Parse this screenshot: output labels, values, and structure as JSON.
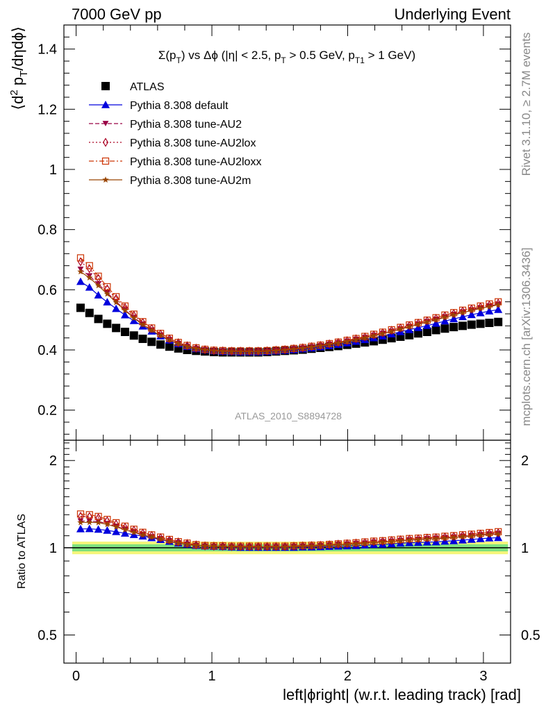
{
  "header": {
    "left": "7000 GeV pp",
    "right": "Underlying Event"
  },
  "side_labels": {
    "upper": "Rivet 3.1.10, ≥ 2.7M events",
    "lower": "mcplots.cern.ch [arXiv:1306.3436]"
  },
  "chart_data": [
    {
      "type": "scatter",
      "title": "Σ(p_T) vs Δϕ (|η| < 2.5, p_T > 0.5 GeV, p_T1 > 1 GeV)",
      "title_parts": {
        "sigma": "Σ(p",
        "sub_t": "T",
        "mid": ") vs Δϕ (|η| < 2.5, p",
        "sub_t2": "T",
        "mid2": " > 0.5 GeV, p",
        "sub_t1": "T1",
        "end": " > 1 GeV)"
      },
      "ylabel": "⟨d² p_T/dηdϕ⟩",
      "ylabel_parts": {
        "open": "⟨d",
        "sup": "2",
        "p": " p",
        "sub": "T",
        "rest": "/dηdϕ⟩"
      },
      "watermark": "ATLAS_2010_S8894728",
      "xlim": [
        -0.09,
        3.2
      ],
      "ylim": [
        0.1,
        1.48
      ],
      "yticks": [
        0.2,
        0.4,
        0.6,
        0.8,
        1,
        1.2,
        1.4
      ],
      "ytick_labels": [
        "0.2",
        "0.4",
        "0.6",
        "0.8",
        "1",
        "1.2",
        "1.4"
      ],
      "x": [
        0.0327,
        0.0982,
        0.1636,
        0.2291,
        0.2945,
        0.36,
        0.4254,
        0.4909,
        0.5563,
        0.6218,
        0.6872,
        0.7527,
        0.8181,
        0.8836,
        0.949,
        1.0145,
        1.0799,
        1.1454,
        1.2108,
        1.2763,
        1.3417,
        1.4072,
        1.4726,
        1.5381,
        1.6035,
        1.669,
        1.7344,
        1.7999,
        1.8653,
        1.9308,
        1.9962,
        2.0617,
        2.1271,
        2.1926,
        2.258,
        2.3235,
        2.3889,
        2.4544,
        2.5198,
        2.5853,
        2.6507,
        2.7162,
        2.7816,
        2.8471,
        2.9125,
        2.978,
        3.0434,
        3.1089
      ],
      "legend_position": "top-left",
      "series": [
        {
          "name": "ATLAS",
          "color": "#000000",
          "marker": "square-filled",
          "line": "none",
          "values": [
            0.54,
            0.523,
            0.503,
            0.487,
            0.473,
            0.46,
            0.448,
            0.437,
            0.427,
            0.418,
            0.411,
            0.405,
            0.4,
            0.397,
            0.395,
            0.393,
            0.392,
            0.392,
            0.392,
            0.392,
            0.392,
            0.393,
            0.395,
            0.397,
            0.399,
            0.401,
            0.404,
            0.407,
            0.41,
            0.413,
            0.417,
            0.421,
            0.425,
            0.429,
            0.434,
            0.439,
            0.444,
            0.449,
            0.455,
            0.46,
            0.466,
            0.471,
            0.476,
            0.48,
            0.484,
            0.487,
            0.49,
            0.493
          ]
        },
        {
          "name": "Pythia 8.308 default",
          "color": "#0000dd",
          "marker": "triangle-up-filled",
          "line": "solid",
          "values": [
            0.627,
            0.608,
            0.582,
            0.559,
            0.537,
            0.516,
            0.497,
            0.479,
            0.462,
            0.446,
            0.432,
            0.42,
            0.411,
            0.404,
            0.4,
            0.397,
            0.395,
            0.394,
            0.393,
            0.393,
            0.393,
            0.394,
            0.396,
            0.398,
            0.4,
            0.403,
            0.406,
            0.41,
            0.414,
            0.418,
            0.423,
            0.428,
            0.434,
            0.44,
            0.446,
            0.453,
            0.46,
            0.467,
            0.474,
            0.481,
            0.488,
            0.496,
            0.503,
            0.51,
            0.517,
            0.523,
            0.529,
            0.534
          ]
        },
        {
          "name": "Pythia 8.308 tune-AU2",
          "color": "#990044",
          "marker": "triangle-down-filled",
          "line": "dashed",
          "values": [
            0.668,
            0.646,
            0.619,
            0.59,
            0.561,
            0.533,
            0.508,
            0.486,
            0.466,
            0.449,
            0.434,
            0.421,
            0.411,
            0.404,
            0.4,
            0.397,
            0.396,
            0.395,
            0.395,
            0.395,
            0.395,
            0.396,
            0.398,
            0.4,
            0.403,
            0.406,
            0.41,
            0.414,
            0.419,
            0.424,
            0.429,
            0.435,
            0.441,
            0.448,
            0.455,
            0.462,
            0.47,
            0.478,
            0.486,
            0.494,
            0.502,
            0.51,
            0.518,
            0.526,
            0.533,
            0.54,
            0.546,
            0.552
          ]
        },
        {
          "name": "Pythia 8.308 tune-AU2lox",
          "color": "#aa0022",
          "marker": "diamond-open",
          "line": "dotted",
          "values": [
            0.693,
            0.67,
            0.638,
            0.603,
            0.571,
            0.541,
            0.515,
            0.491,
            0.471,
            0.453,
            0.437,
            0.424,
            0.414,
            0.406,
            0.401,
            0.398,
            0.397,
            0.396,
            0.396,
            0.396,
            0.396,
            0.397,
            0.399,
            0.401,
            0.404,
            0.407,
            0.411,
            0.415,
            0.42,
            0.425,
            0.431,
            0.437,
            0.443,
            0.45,
            0.457,
            0.465,
            0.473,
            0.481,
            0.489,
            0.497,
            0.505,
            0.513,
            0.521,
            0.529,
            0.536,
            0.543,
            0.549,
            0.555
          ]
        },
        {
          "name": "Pythia 8.308 tune-AU2loxx",
          "color": "#cc3300",
          "marker": "square-open",
          "line": "dashdot",
          "values": [
            0.706,
            0.68,
            0.645,
            0.61,
            0.577,
            0.546,
            0.519,
            0.494,
            0.473,
            0.455,
            0.439,
            0.425,
            0.415,
            0.407,
            0.402,
            0.399,
            0.398,
            0.397,
            0.397,
            0.397,
            0.397,
            0.398,
            0.4,
            0.402,
            0.405,
            0.408,
            0.412,
            0.416,
            0.421,
            0.426,
            0.432,
            0.438,
            0.445,
            0.452,
            0.459,
            0.467,
            0.475,
            0.483,
            0.491,
            0.499,
            0.507,
            0.516,
            0.524,
            0.532,
            0.539,
            0.546,
            0.553,
            0.56
          ]
        },
        {
          "name": "Pythia 8.308 tune-AU2m",
          "color": "#994400",
          "marker": "star-filled",
          "line": "solid",
          "values": [
            0.66,
            0.64,
            0.614,
            0.586,
            0.558,
            0.531,
            0.506,
            0.484,
            0.465,
            0.448,
            0.433,
            0.421,
            0.411,
            0.404,
            0.4,
            0.397,
            0.395,
            0.395,
            0.394,
            0.394,
            0.394,
            0.395,
            0.397,
            0.399,
            0.402,
            0.405,
            0.409,
            0.413,
            0.418,
            0.423,
            0.428,
            0.434,
            0.44,
            0.447,
            0.454,
            0.461,
            0.469,
            0.477,
            0.485,
            0.493,
            0.5,
            0.508,
            0.516,
            0.524,
            0.531,
            0.538,
            0.544,
            0.55
          ]
        }
      ]
    },
    {
      "type": "scatter",
      "ylabel": "Ratio to ATLAS",
      "xlabel": "left|ϕright| (w.r.t. leading track) [rad]",
      "xlim": [
        -0.09,
        3.2
      ],
      "ylim": [
        0.4,
        2.35
      ],
      "log_y": true,
      "yticks": [
        0.5,
        1,
        2
      ],
      "ytick_labels": [
        "0.5",
        "1",
        "2"
      ],
      "xticks": [
        0,
        1,
        2,
        3
      ],
      "xtick_labels": [
        "0",
        "1",
        "2",
        "3"
      ],
      "band_colors": {
        "inner": "#7fe27f",
        "outer": "#f5f57a"
      },
      "band_half_width": {
        "inner": 0.028,
        "outer": 0.05
      }
    }
  ]
}
